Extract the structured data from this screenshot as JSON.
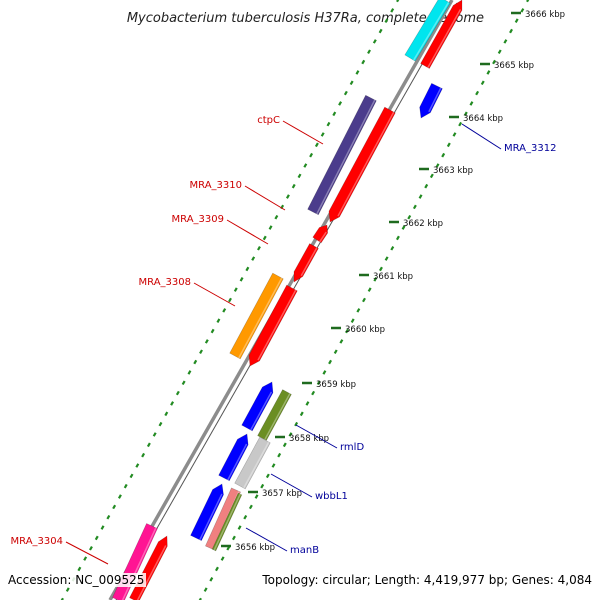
{
  "title": "Mycobacterium tuberculosis H37Ra, complete genome",
  "accession_text": "Accession: NC_009525",
  "topology_text": "Topology: circular; Length: 4,419,977 bp; Genes: 4,084",
  "colors": {
    "red": "#ff0000",
    "blue": "#0000ff",
    "navy": "#4b3c8c",
    "orange": "#ff9900",
    "olive": "#6b8e23",
    "gray": "#c8c8c8",
    "cyan": "#00e5ee",
    "pink": "#ff1493",
    "salmon": "#f08080",
    "backbone": "#8c8c8c",
    "ticks": "#228b22",
    "label_red": "#cc0000",
    "label_blue": "#000099"
  },
  "ticks": [
    {
      "label": "3656 kbp"
    },
    {
      "label": "3657 kbp"
    },
    {
      "label": "3658 kbp"
    },
    {
      "label": "3659 kbp"
    },
    {
      "label": "3660 kbp"
    },
    {
      "label": "3661 kbp"
    },
    {
      "label": "3662 kbp"
    },
    {
      "label": "3663 kbp"
    },
    {
      "label": "3664 kbp"
    },
    {
      "label": "3665 kbp"
    },
    {
      "label": "3666 kbp"
    }
  ],
  "gene_labels": [
    {
      "text": "ctpC",
      "color": "label_red"
    },
    {
      "text": "MRA_3310",
      "color": "label_red"
    },
    {
      "text": "MRA_3309",
      "color": "label_red"
    },
    {
      "text": "MRA_3308",
      "color": "label_red"
    },
    {
      "text": "MRA_3304",
      "color": "label_red"
    },
    {
      "text": "MRA_3312",
      "color": "label_blue"
    },
    {
      "text": "rmlD",
      "color": "label_blue"
    },
    {
      "text": "wbbL1",
      "color": "label_blue"
    },
    {
      "text": "manB",
      "color": "label_blue"
    }
  ]
}
